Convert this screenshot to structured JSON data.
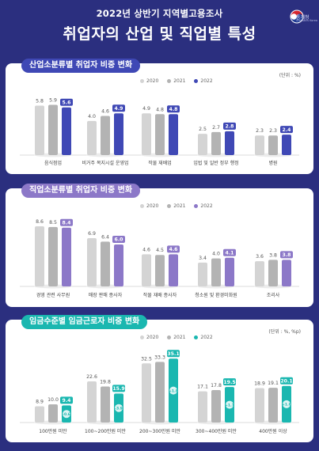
{
  "header": {
    "sup_title": "2022년 상반기 지역별고용조사",
    "main_title": "취업자의 산업 및 직업별 특성",
    "logo_text": "통계청",
    "logo_sub": "Statistics Korea"
  },
  "colors": {
    "background": "#2b2f7f",
    "y2020": "#d4d4d4",
    "y2021": "#b3b3b3",
    "industry_2022": "#3f48b5",
    "occupation_2022": "#8c78c8",
    "wage_2022": "#1ab7b0"
  },
  "chart_data": [
    {
      "type": "bar",
      "title": "산업소분류별 취업자 비중 변화",
      "unit": "(단위 : %)",
      "legend": [
        "2020",
        "2021",
        "2022"
      ],
      "categories": [
        "음식점업",
        "비거주 복지시설 운영업",
        "작물 재배업",
        "입법 및 일반 정부 행정",
        "병원"
      ],
      "series": [
        {
          "name": "2020",
          "values": [
            5.8,
            4.0,
            4.9,
            2.5,
            2.3
          ]
        },
        {
          "name": "2021",
          "values": [
            5.9,
            4.6,
            4.8,
            2.7,
            2.3
          ]
        },
        {
          "name": "2022",
          "values": [
            5.6,
            4.9,
            4.8,
            2.8,
            2.4
          ]
        }
      ],
      "ylim": [
        0,
        6.5
      ]
    },
    {
      "type": "bar",
      "title": "직업소분류별 취업자 비중 변화",
      "unit": "",
      "legend": [
        "2020",
        "2021",
        "2022"
      ],
      "categories": [
        "경영 관련 사무원",
        "매장 판매 종사자",
        "작물 재배 종사자",
        "청소원 및 환경미화원",
        "조리사"
      ],
      "series": [
        {
          "name": "2020",
          "values": [
            8.6,
            6.9,
            4.6,
            3.4,
            3.6
          ]
        },
        {
          "name": "2021",
          "values": [
            8.5,
            6.4,
            4.5,
            4.0,
            3.8
          ]
        },
        {
          "name": "2022",
          "values": [
            8.4,
            6.0,
            4.6,
            4.1,
            3.8
          ]
        }
      ],
      "ylim": [
        0,
        9.5
      ]
    },
    {
      "type": "bar",
      "title": "임금수준별 임금근로자 비중 변화",
      "unit": "(단위 : %, %p)",
      "legend": [
        "2020",
        "2021",
        "2022"
      ],
      "categories": [
        "100만원 미만",
        "100~200만원 미만",
        "200~300만원 미만",
        "300~400만원 미만",
        "400만원 이상"
      ],
      "series": [
        {
          "name": "2020",
          "values": [
            8.9,
            22.6,
            32.5,
            17.1,
            18.9
          ]
        },
        {
          "name": "2021",
          "values": [
            10.0,
            19.8,
            33.3,
            17.8,
            19.1
          ]
        },
        {
          "name": "2022",
          "values": [
            9.4,
            15.9,
            35.1,
            19.5,
            20.1
          ]
        }
      ],
      "changes": [
        "-0.6",
        "-3.9",
        "+1.8",
        "+1.7",
        "+1.0"
      ],
      "ylim": [
        0,
        40
      ]
    }
  ]
}
